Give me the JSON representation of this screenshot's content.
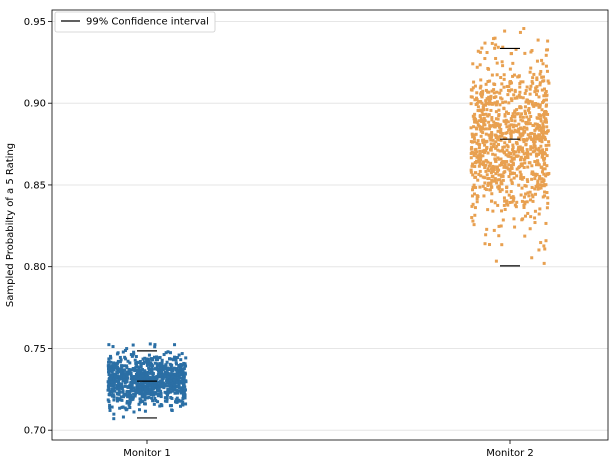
{
  "colors": {
    "series_1": "#2b6fa5",
    "series_2": "#e8a050",
    "ci_line": "#000000",
    "grid": "#e6e6e6",
    "axis": "#000000",
    "background": "#ffffff"
  },
  "chart_data": {
    "type": "scatter",
    "subtype": "strip-plot",
    "title": "",
    "xlabel": "",
    "ylabel": "Sampled Probabilty of a 5 Rating",
    "categories": [
      "Monitor 1",
      "Monitor 2"
    ],
    "ylim": [
      0.694,
      0.957
    ],
    "yticks": [
      "0.70",
      "0.75",
      "0.80",
      "0.85",
      "0.90",
      "0.95"
    ],
    "ytick_values": [
      0.7,
      0.75,
      0.8,
      0.85,
      0.9,
      0.95
    ],
    "grid": "horizontal",
    "legend": {
      "placement": "top-left",
      "entries": [
        {
          "label": "99% Confidence interval",
          "marker": "line"
        }
      ]
    },
    "series": [
      {
        "category": "Monitor 1",
        "points": 1000,
        "mean": 0.73,
        "sd": 0.0075,
        "min_observed": 0.704,
        "max_observed": 0.757,
        "ci_lower": 0.7075,
        "ci_mean": 0.73,
        "ci_upper": 0.7485
      },
      {
        "category": "Monitor 2",
        "points": 1000,
        "mean": 0.878,
        "sd": 0.025,
        "min_observed": 0.776,
        "max_observed": 0.947,
        "ci_lower": 0.8005,
        "ci_mean": 0.878,
        "ci_upper": 0.9335
      }
    ]
  }
}
